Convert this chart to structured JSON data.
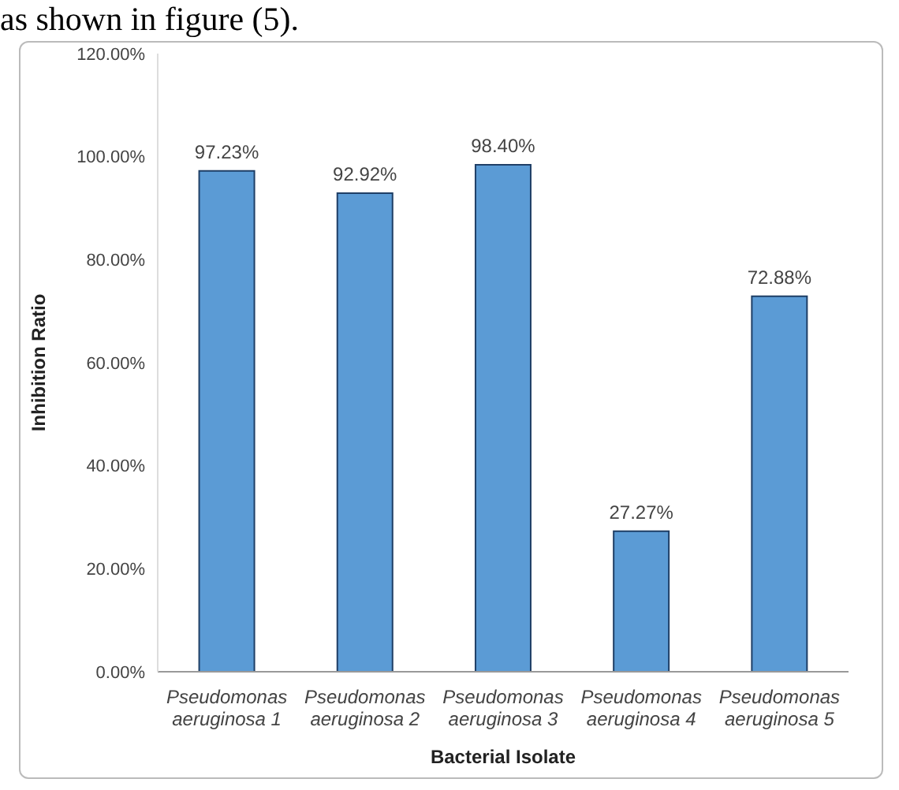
{
  "chart_data": {
    "type": "bar",
    "annotations": [
      "as shown in figure (5)."
    ],
    "xlabel": "Bacterial Isolate",
    "ylabel": "Inhibition Ratio",
    "categories": [
      "Pseudomonas aeruginosa 1",
      "Pseudomonas aeruginosa 2",
      "Pseudomonas aeruginosa 3",
      "Pseudomonas aeruginosa 4",
      "Pseudomonas aeruginosa 5"
    ],
    "values": [
      97.23,
      92.92,
      98.4,
      27.27,
      72.88
    ],
    "value_labels": [
      "97.23%",
      "92.92%",
      "98.40%",
      "27.27%",
      "72.88%"
    ],
    "color": "#5b9bd5",
    "ylim": [
      0,
      120
    ],
    "yticks": [
      {
        "value": 0,
        "label": "0.00%"
      },
      {
        "value": 20,
        "label": "20.00%"
      },
      {
        "value": 40,
        "label": "40.00%"
      },
      {
        "value": 60,
        "label": "60.00%"
      },
      {
        "value": 80,
        "label": "80.00%"
      },
      {
        "value": 100,
        "label": "100.00%"
      },
      {
        "value": 120,
        "label": "120.00%"
      }
    ],
    "grid": false
  }
}
